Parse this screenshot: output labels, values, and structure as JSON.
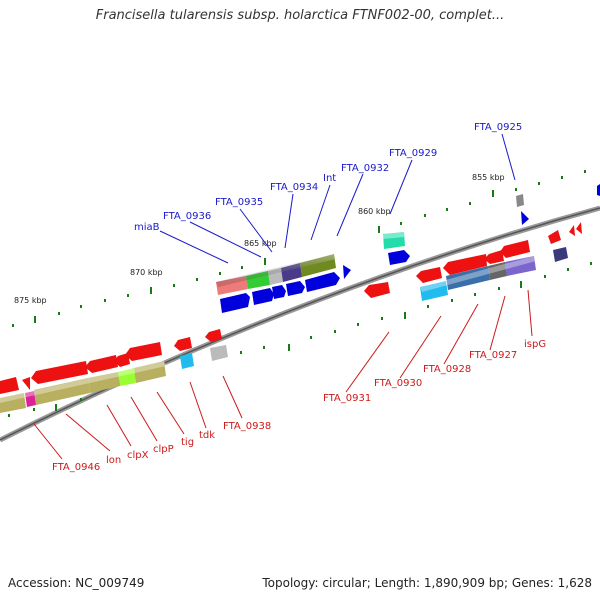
{
  "title": "Francisella tularensis subsp. holarctica FTNF002-00, complet...",
  "footer": {
    "accession": "Accession: NC_009749",
    "summary": "Topology: circular; Length: 1,890,909 bp; Genes: 1,628"
  },
  "ticks": [
    "855 kbp",
    "860 kbp",
    "865 kbp",
    "870 kbp",
    "875 kbp"
  ],
  "genes_top": [
    "FTA_0925",
    "FTA_0929",
    "FTA_0932",
    "Int",
    "FTA_0934",
    "FTA_0935",
    "FTA_0936",
    "miaB"
  ],
  "genes_bottom": [
    "ispG",
    "FTA_0927",
    "FTA_0928",
    "FTA_0930",
    "FTA_0931",
    "FTA_0938",
    "tdk",
    "tig",
    "clpP",
    "clpX",
    "lon",
    "FTA_0946"
  ],
  "colors": {
    "forward": "#0000dd",
    "reverse": "#ee1111",
    "backbone": "#7a7a7a",
    "tick": "#1a7a1a",
    "label_top": "#1a1acc",
    "label_bottom": "#cc1a1a"
  }
}
